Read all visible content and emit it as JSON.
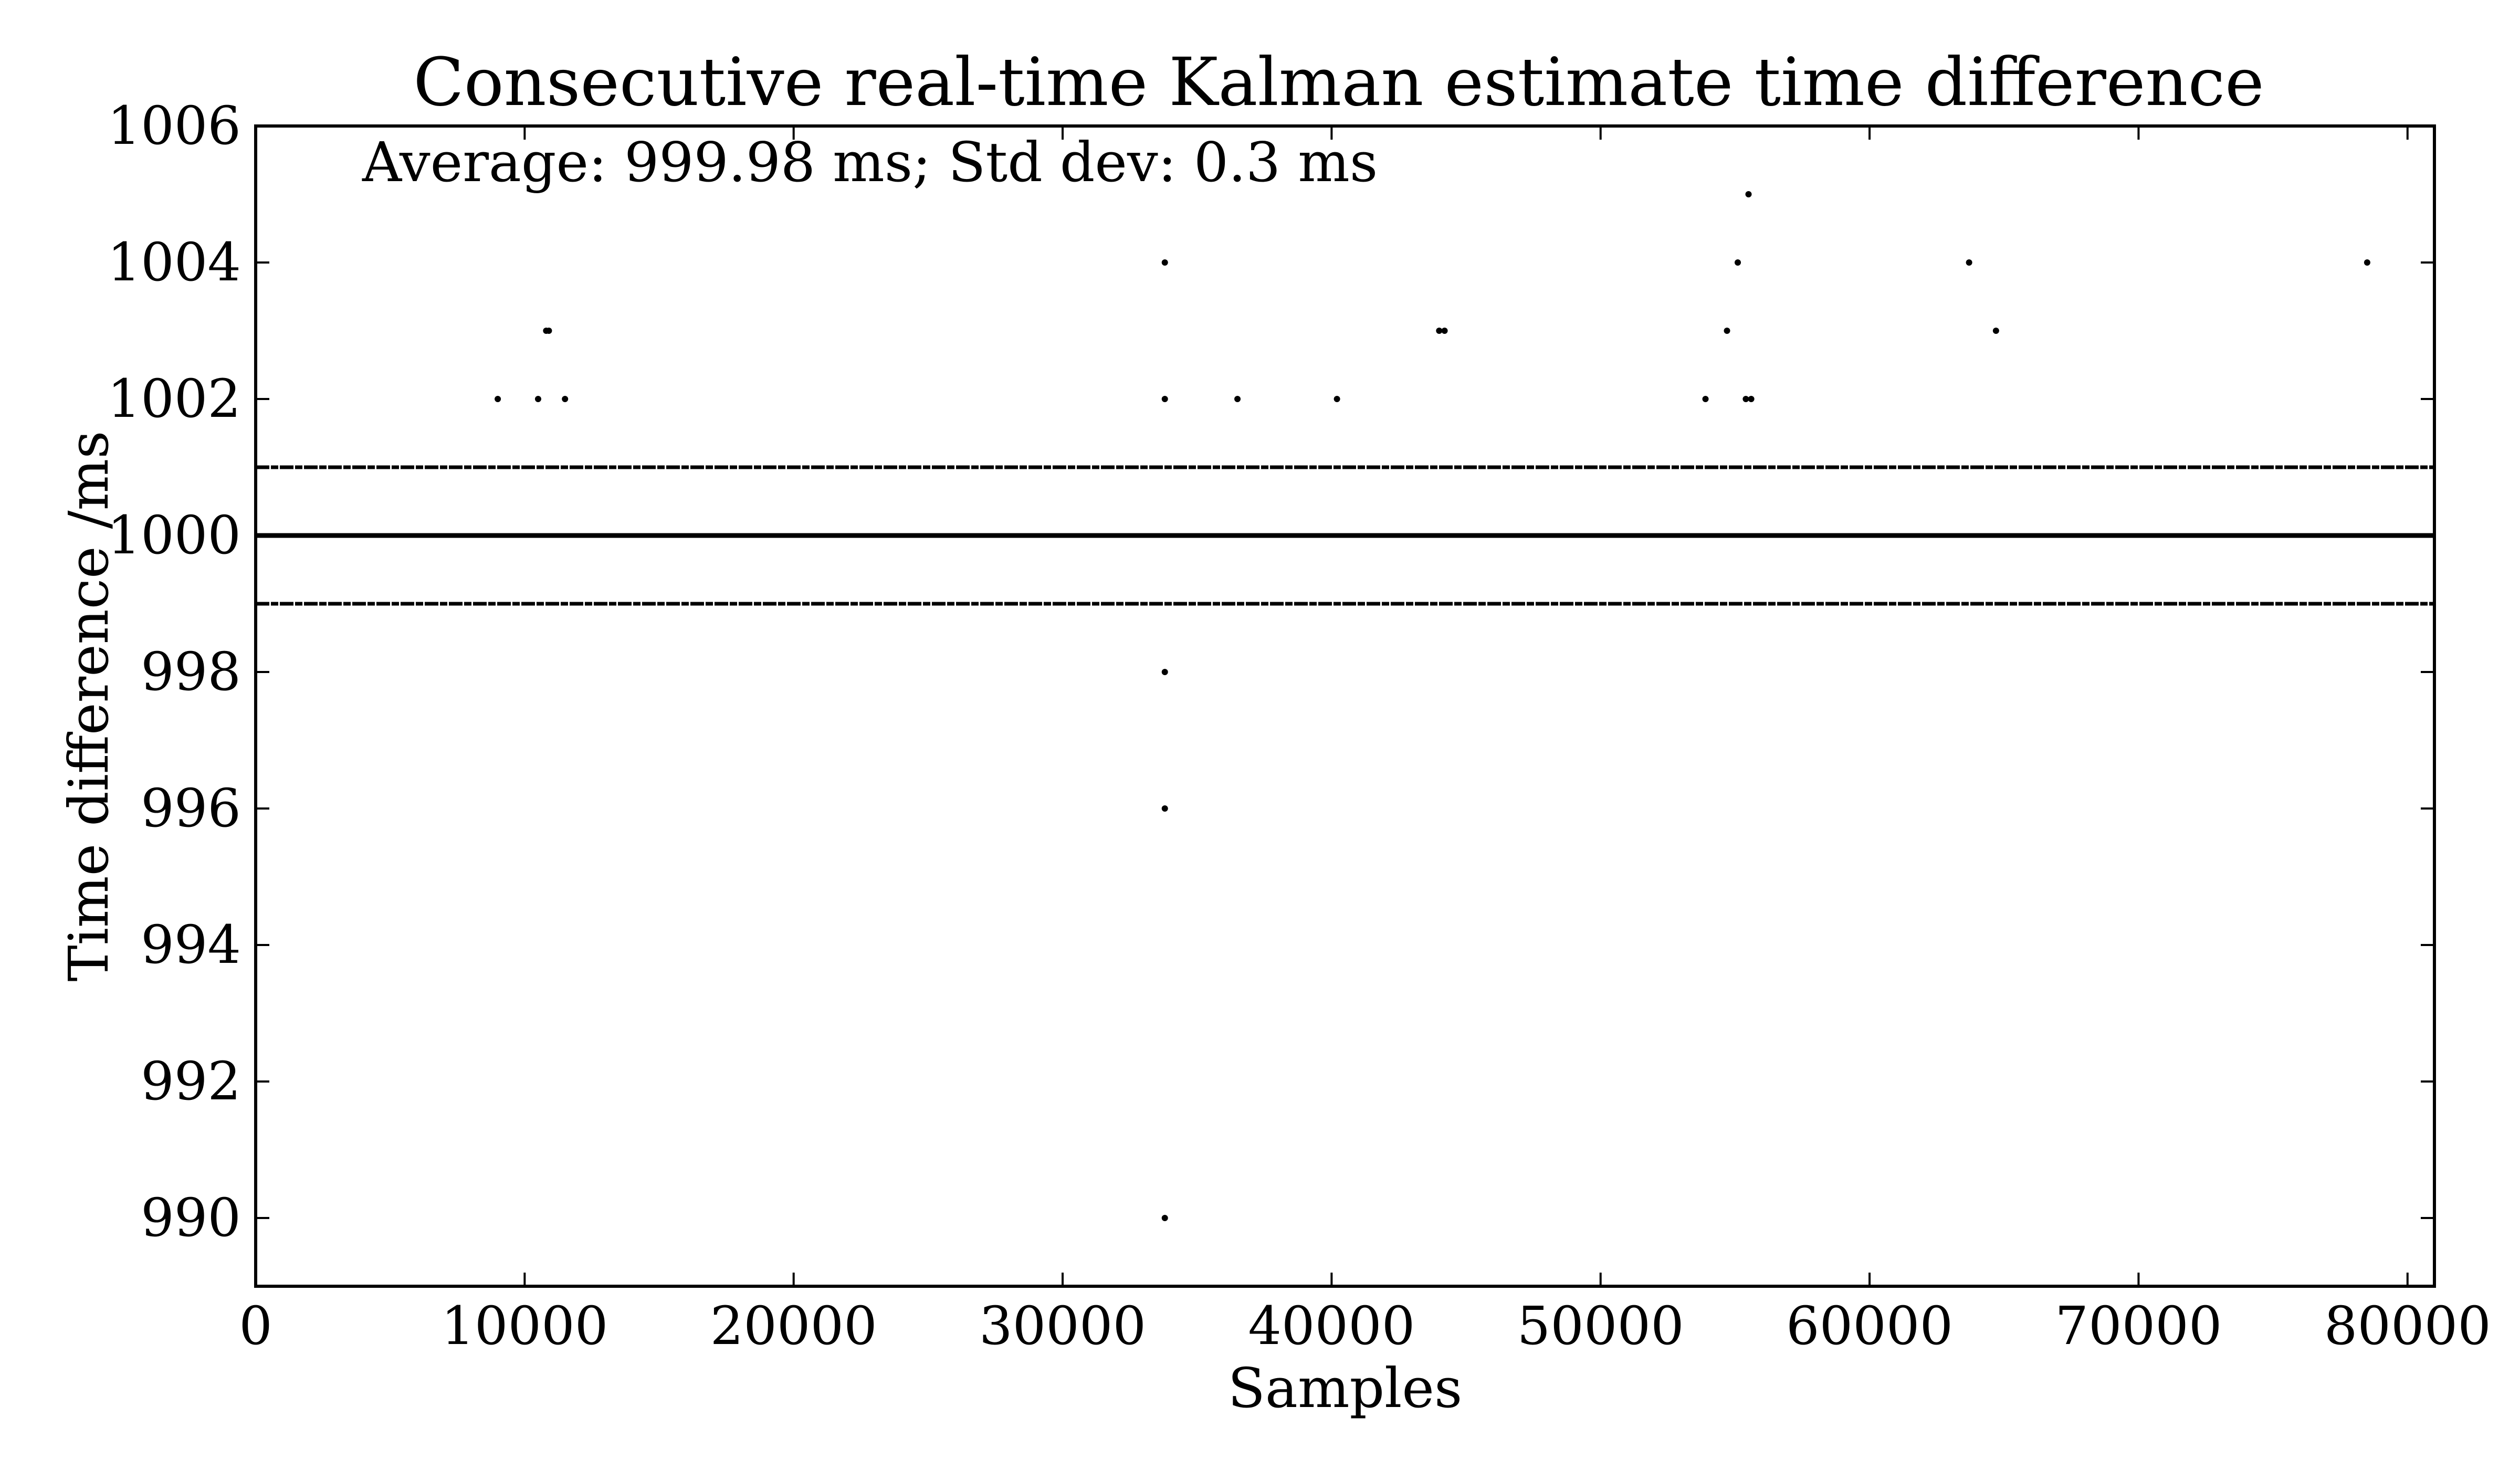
{
  "chart_data": {
    "type": "scatter",
    "title": "Consecutive real-time Kalman estimate time difference",
    "xlabel": "Samples",
    "ylabel": "Time difference /ms",
    "annotation": "Average: 999.98 ms; Std dev: 0.3 ms",
    "xlim": [
      0,
      81000
    ],
    "ylim": [
      989,
      1006
    ],
    "xticks": [
      0,
      10000,
      20000,
      30000,
      40000,
      50000,
      60000,
      70000,
      80000
    ],
    "yticks": [
      990,
      992,
      994,
      996,
      998,
      1000,
      1002,
      1004,
      1006
    ],
    "grid": false,
    "dense_bands": [
      {
        "y": 999,
        "x_range": [
          0,
          81000
        ]
      },
      {
        "y": 1000,
        "x_range": [
          0,
          81000
        ]
      },
      {
        "y": 1001,
        "x_range": [
          0,
          81000
        ]
      }
    ],
    "points": [
      {
        "x": 9000,
        "y": 1002
      },
      {
        "x": 10500,
        "y": 1002
      },
      {
        "x": 10800,
        "y": 1003
      },
      {
        "x": 10900,
        "y": 1003
      },
      {
        "x": 11500,
        "y": 1002
      },
      {
        "x": 33800,
        "y": 1004
      },
      {
        "x": 33800,
        "y": 1002
      },
      {
        "x": 33800,
        "y": 998
      },
      {
        "x": 33800,
        "y": 996
      },
      {
        "x": 33800,
        "y": 990
      },
      {
        "x": 36500,
        "y": 1002
      },
      {
        "x": 40200,
        "y": 1002
      },
      {
        "x": 44000,
        "y": 1003
      },
      {
        "x": 44200,
        "y": 1003
      },
      {
        "x": 53900,
        "y": 1002
      },
      {
        "x": 54700,
        "y": 1003
      },
      {
        "x": 55100,
        "y": 1004
      },
      {
        "x": 55400,
        "y": 1002
      },
      {
        "x": 55600,
        "y": 1002
      },
      {
        "x": 55500,
        "y": 1005
      },
      {
        "x": 63700,
        "y": 1004
      },
      {
        "x": 64700,
        "y": 1003
      },
      {
        "x": 78500,
        "y": 1004
      }
    ],
    "color": "#000000"
  }
}
